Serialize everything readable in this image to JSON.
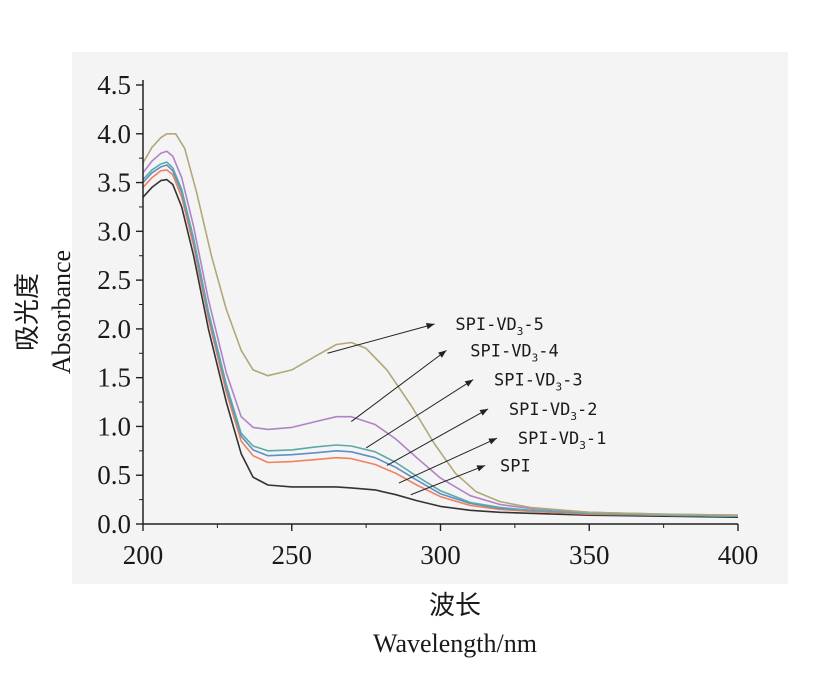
{
  "chart_data": {
    "type": "line",
    "xlabel_cn": "波长",
    "xlabel_en": "Wavelength/nm",
    "ylabel_cn": "吸光度",
    "ylabel_en": "Absorbance",
    "xlim": [
      200,
      400
    ],
    "ylim": [
      0,
      4.5
    ],
    "x_ticks": [
      "200",
      "250",
      "300",
      "350",
      "400"
    ],
    "y_ticks": [
      "0.0",
      "0.5",
      "1.0",
      "1.5",
      "2.0",
      "2.5",
      "3.0",
      "3.5",
      "4.0",
      "4.5"
    ],
    "grid": false,
    "legend": "annotations with arrows",
    "series": [
      {
        "name": "SPI",
        "label_main": "SPI",
        "label_sub": "",
        "label_tail": "",
        "color": "#333333",
        "points": [
          [
            200,
            3.35
          ],
          [
            203,
            3.45
          ],
          [
            206,
            3.52
          ],
          [
            208,
            3.53
          ],
          [
            210,
            3.48
          ],
          [
            213,
            3.25
          ],
          [
            217,
            2.75
          ],
          [
            222,
            2.0
          ],
          [
            228,
            1.25
          ],
          [
            233,
            0.72
          ],
          [
            237,
            0.48
          ],
          [
            242,
            0.4
          ],
          [
            250,
            0.38
          ],
          [
            258,
            0.38
          ],
          [
            265,
            0.38
          ],
          [
            270,
            0.37
          ],
          [
            278,
            0.35
          ],
          [
            285,
            0.3
          ],
          [
            292,
            0.24
          ],
          [
            300,
            0.18
          ],
          [
            310,
            0.14
          ],
          [
            320,
            0.12
          ],
          [
            330,
            0.11
          ],
          [
            350,
            0.09
          ],
          [
            375,
            0.08
          ],
          [
            400,
            0.07
          ]
        ]
      },
      {
        "name": "SPI-VD3-1",
        "label_main": "SPI-VD",
        "label_sub": "3",
        "label_tail": "-1",
        "color": "#ef8060",
        "points": [
          [
            200,
            3.45
          ],
          [
            203,
            3.55
          ],
          [
            206,
            3.62
          ],
          [
            208,
            3.63
          ],
          [
            210,
            3.58
          ],
          [
            213,
            3.35
          ],
          [
            217,
            2.85
          ],
          [
            222,
            2.1
          ],
          [
            228,
            1.35
          ],
          [
            233,
            0.85
          ],
          [
            237,
            0.7
          ],
          [
            242,
            0.63
          ],
          [
            250,
            0.64
          ],
          [
            258,
            0.66
          ],
          [
            265,
            0.68
          ],
          [
            270,
            0.67
          ],
          [
            278,
            0.61
          ],
          [
            285,
            0.52
          ],
          [
            292,
            0.4
          ],
          [
            300,
            0.28
          ],
          [
            310,
            0.19
          ],
          [
            320,
            0.15
          ],
          [
            330,
            0.13
          ],
          [
            350,
            0.1
          ],
          [
            375,
            0.09
          ],
          [
            400,
            0.08
          ]
        ]
      },
      {
        "name": "SPI-VD3-2",
        "label_main": "SPI-VD",
        "label_sub": "3",
        "label_tail": "-2",
        "color": "#5f8fc8",
        "points": [
          [
            200,
            3.5
          ],
          [
            203,
            3.6
          ],
          [
            206,
            3.66
          ],
          [
            208,
            3.68
          ],
          [
            210,
            3.62
          ],
          [
            213,
            3.4
          ],
          [
            217,
            2.9
          ],
          [
            222,
            2.15
          ],
          [
            228,
            1.4
          ],
          [
            233,
            0.9
          ],
          [
            237,
            0.76
          ],
          [
            242,
            0.7
          ],
          [
            250,
            0.71
          ],
          [
            258,
            0.73
          ],
          [
            265,
            0.75
          ],
          [
            270,
            0.74
          ],
          [
            278,
            0.68
          ],
          [
            285,
            0.58
          ],
          [
            292,
            0.45
          ],
          [
            300,
            0.31
          ],
          [
            310,
            0.21
          ],
          [
            320,
            0.16
          ],
          [
            330,
            0.14
          ],
          [
            350,
            0.11
          ],
          [
            375,
            0.09
          ],
          [
            400,
            0.08
          ]
        ]
      },
      {
        "name": "SPI-VD3-3",
        "label_main": "SPI-VD",
        "label_sub": "3",
        "label_tail": "-3",
        "color": "#5fa8a8",
        "points": [
          [
            200,
            3.53
          ],
          [
            203,
            3.63
          ],
          [
            206,
            3.69
          ],
          [
            208,
            3.71
          ],
          [
            210,
            3.65
          ],
          [
            213,
            3.43
          ],
          [
            217,
            2.93
          ],
          [
            222,
            2.18
          ],
          [
            228,
            1.43
          ],
          [
            233,
            0.93
          ],
          [
            237,
            0.8
          ],
          [
            242,
            0.75
          ],
          [
            250,
            0.76
          ],
          [
            258,
            0.79
          ],
          [
            265,
            0.81
          ],
          [
            270,
            0.8
          ],
          [
            278,
            0.74
          ],
          [
            285,
            0.63
          ],
          [
            292,
            0.49
          ],
          [
            300,
            0.34
          ],
          [
            310,
            0.22
          ],
          [
            320,
            0.17
          ],
          [
            330,
            0.14
          ],
          [
            350,
            0.11
          ],
          [
            375,
            0.09
          ],
          [
            400,
            0.08
          ]
        ]
      },
      {
        "name": "SPI-VD3-4",
        "label_main": "SPI-VD",
        "label_sub": "3",
        "label_tail": "-4",
        "color": "#b082c8",
        "points": [
          [
            200,
            3.6
          ],
          [
            203,
            3.72
          ],
          [
            206,
            3.8
          ],
          [
            208,
            3.82
          ],
          [
            210,
            3.77
          ],
          [
            213,
            3.55
          ],
          [
            217,
            3.05
          ],
          [
            222,
            2.3
          ],
          [
            228,
            1.55
          ],
          [
            233,
            1.1
          ],
          [
            237,
            0.99
          ],
          [
            242,
            0.97
          ],
          [
            250,
            0.99
          ],
          [
            258,
            1.05
          ],
          [
            265,
            1.1
          ],
          [
            270,
            1.1
          ],
          [
            278,
            1.02
          ],
          [
            285,
            0.87
          ],
          [
            292,
            0.68
          ],
          [
            300,
            0.47
          ],
          [
            310,
            0.29
          ],
          [
            320,
            0.2
          ],
          [
            330,
            0.16
          ],
          [
            350,
            0.12
          ],
          [
            375,
            0.1
          ],
          [
            400,
            0.09
          ]
        ]
      },
      {
        "name": "SPI-VD3-5",
        "label_main": "SPI-VD",
        "label_sub": "3",
        "label_tail": "-5",
        "color": "#b0a878",
        "points": [
          [
            200,
            3.7
          ],
          [
            203,
            3.86
          ],
          [
            206,
            3.96
          ],
          [
            208,
            4.0
          ],
          [
            211,
            4.0
          ],
          [
            214,
            3.85
          ],
          [
            218,
            3.4
          ],
          [
            223,
            2.75
          ],
          [
            228,
            2.2
          ],
          [
            233,
            1.78
          ],
          [
            237,
            1.58
          ],
          [
            242,
            1.52
          ],
          [
            250,
            1.58
          ],
          [
            258,
            1.72
          ],
          [
            265,
            1.84
          ],
          [
            270,
            1.86
          ],
          [
            275,
            1.8
          ],
          [
            282,
            1.58
          ],
          [
            290,
            1.22
          ],
          [
            298,
            0.82
          ],
          [
            305,
            0.52
          ],
          [
            312,
            0.33
          ],
          [
            320,
            0.23
          ],
          [
            330,
            0.17
          ],
          [
            350,
            0.12
          ],
          [
            375,
            0.1
          ],
          [
            400,
            0.09
          ]
        ]
      }
    ],
    "annotations": [
      {
        "series": 5,
        "text_at": [
          305,
          2.05
        ],
        "arrow_from": [
          262,
          1.75
        ],
        "arrow_to": [
          298,
          2.05
        ]
      },
      {
        "series": 4,
        "text_at": [
          310,
          1.78
        ],
        "arrow_from": [
          270,
          1.05
        ],
        "arrow_to": [
          302,
          1.78
        ]
      },
      {
        "series": 3,
        "text_at": [
          318,
          1.48
        ],
        "arrow_from": [
          275,
          0.78
        ],
        "arrow_to": [
          311,
          1.48
        ]
      },
      {
        "series": 2,
        "text_at": [
          323,
          1.18
        ],
        "arrow_from": [
          282,
          0.6
        ],
        "arrow_to": [
          316,
          1.18
        ]
      },
      {
        "series": 1,
        "text_at": [
          326,
          0.88
        ],
        "arrow_from": [
          286,
          0.42
        ],
        "arrow_to": [
          319,
          0.88
        ]
      },
      {
        "series": 0,
        "text_at": [
          320,
          0.6
        ],
        "arrow_from": [
          290,
          0.3
        ],
        "arrow_to": [
          315,
          0.6
        ]
      }
    ]
  }
}
